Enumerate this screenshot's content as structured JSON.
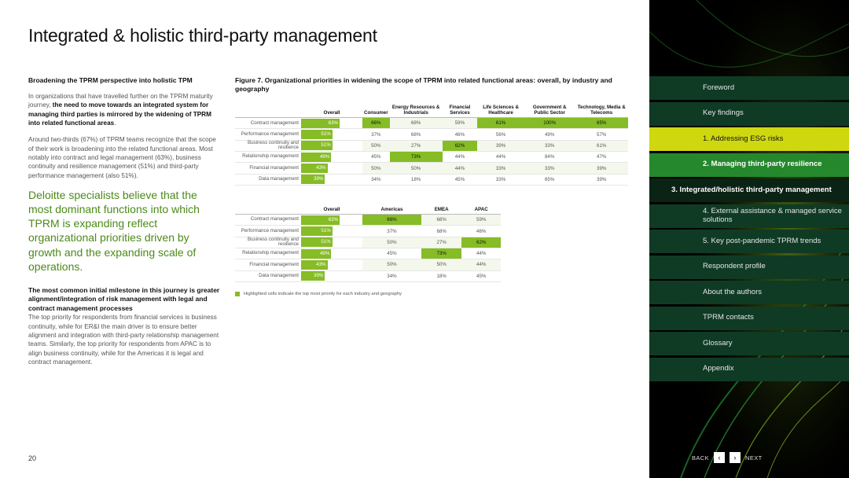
{
  "page": {
    "title": "Integrated & holistic third-party management",
    "page_number": "20"
  },
  "left": {
    "subheading": "Broadening the TPRM perspective into holistic TPM",
    "para1_plain": "In organizations that have travelled further on the TPRM maturity journey, ",
    "para1_bold": "the need to move towards an integrated system for managing third parties is mirrored by the widening of TPRM into related functional areas",
    "para1_end": ".",
    "para2": "Around two-thirds (67%) of TPRM teams recognize that the scope of their work is broadening into the related functional areas. Most notably into contract and legal management (63%), business continuity and resilience management (51%) and third-party performance management (also 51%).",
    "quote": "Deloitte specialists believe that the most dominant functions into which TPRM is expanding reflect organizational priorities driven by growth and the expanding scale of operations.",
    "milestone_heading": "The most common initial milestone in this journey is greater alignment/integration of risk management with legal and contract management processes",
    "milestone_body": "The top priority for respondents from financial services is business continuity, while for ER&I the main driver is to ensure better alignment and integration with third-party relationship management teams. Similarly, the top priority for respondents from APAC is to align business continuity, while for the Americas it is legal and contract management."
  },
  "figure": {
    "title": "Figure 7. Organizational priorities in widening the scope of TPRM into related functional areas: overall, by industry and geography",
    "legend": "Highlighted cells indicate the top most priority for each industry and geography"
  },
  "chart_data": [
    {
      "type": "table",
      "columns": [
        "Overall",
        "Consumer",
        "Energy Resources & Industrials",
        "Financial Services",
        "Life Sciences & Healthcare",
        "Government & Public Sector",
        "Technology, Media & Telecoms"
      ],
      "rows": [
        {
          "label": "Contract management",
          "overall": 63,
          "values": [
            "66%",
            "68%",
            "59%",
            "61%",
            "100%",
            "65%"
          ],
          "highlight": [
            0,
            3,
            4,
            5
          ]
        },
        {
          "label": "Performance management",
          "overall": 51,
          "values": [
            "37%",
            "68%",
            "46%",
            "56%",
            "49%",
            "57%"
          ],
          "highlight": []
        },
        {
          "label": "Business continuity and resilience",
          "overall": 51,
          "values": [
            "50%",
            "27%",
            "62%",
            "39%",
            "33%",
            "61%"
          ],
          "highlight": [
            2
          ]
        },
        {
          "label": "Relationship management",
          "overall": 49,
          "values": [
            "45%",
            "73%",
            "44%",
            "44%",
            "84%",
            "47%"
          ],
          "highlight": [
            1
          ]
        },
        {
          "label": "Financial management",
          "overall": 43,
          "values": [
            "50%",
            "50%",
            "44%",
            "33%",
            "33%",
            "39%"
          ],
          "highlight": []
        },
        {
          "label": "Data management",
          "overall": 39,
          "values": [
            "34%",
            "18%",
            "45%",
            "33%",
            "65%",
            "39%"
          ],
          "highlight": []
        }
      ]
    },
    {
      "type": "table",
      "columns": [
        "Overall",
        "Americas",
        "EMEA",
        "APAC"
      ],
      "rows": [
        {
          "label": "Contract management",
          "overall": 63,
          "values": [
            "66%",
            "68%",
            "59%"
          ],
          "highlight": [
            0
          ]
        },
        {
          "label": "Performance management",
          "overall": 51,
          "values": [
            "37%",
            "68%",
            "46%"
          ],
          "highlight": []
        },
        {
          "label": "Business continuity and resilience",
          "overall": 51,
          "values": [
            "50%",
            "27%",
            "62%"
          ],
          "highlight": [
            2
          ]
        },
        {
          "label": "Relationship management",
          "overall": 49,
          "values": [
            "45%",
            "73%",
            "44%"
          ],
          "highlight": [
            1
          ]
        },
        {
          "label": "Financial management",
          "overall": 43,
          "values": [
            "50%",
            "50%",
            "44%"
          ],
          "highlight": []
        },
        {
          "label": "Data management",
          "overall": 39,
          "values": [
            "34%",
            "18%",
            "45%"
          ],
          "highlight": []
        }
      ]
    }
  ],
  "nav": {
    "items": [
      {
        "label": "Foreword"
      },
      {
        "label": "Key findings"
      },
      {
        "label": "1.  Addressing ESG risks"
      },
      {
        "label": "2.  Managing third-party resilience"
      },
      {
        "label": "3.  Integrated/holistic third-party management"
      },
      {
        "label": "4.  External assistance & managed service solutions"
      },
      {
        "label": "5.  Key post-pandemic TPRM trends"
      },
      {
        "label": "Respondent profile"
      },
      {
        "label": "About the authors"
      },
      {
        "label": "TPRM contacts"
      },
      {
        "label": "Glossary"
      },
      {
        "label": "Appendix"
      }
    ],
    "back_label": "BACK",
    "next_label": "NEXT"
  },
  "colors": {
    "accent_green": "#86bc25",
    "nav_dark": "#0f3b25",
    "nav_lime": "#cfd80f",
    "nav_green": "#26882d"
  }
}
